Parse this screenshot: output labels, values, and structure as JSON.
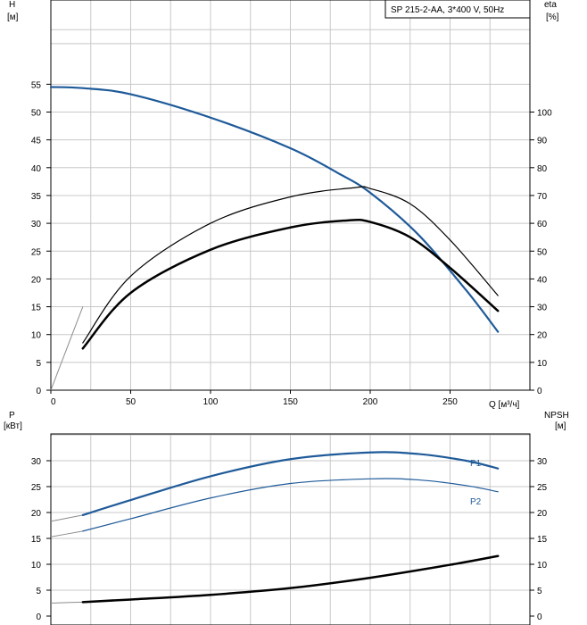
{
  "chart_data": [
    {
      "type": "line",
      "title": "SP 215-2-AA, 3*400 V, 50Hz",
      "xlabel": "Q [м³/ч]",
      "xlim": [
        0,
        300
      ],
      "x_ticks": [
        "0",
        "50",
        "100",
        "150",
        "200",
        "250"
      ],
      "y_left": {
        "label_top": "H",
        "label_bottom": "[м]",
        "ylim": [
          0,
          65
        ],
        "ticks": [
          "0",
          "5",
          "10",
          "15",
          "20",
          "25",
          "30",
          "35",
          "40",
          "45",
          "50",
          "55"
        ]
      },
      "y_right": {
        "label_top": "eta",
        "label_bottom": "[%]",
        "ylim": [
          0,
          130
        ],
        "ticks": [
          "0",
          "10",
          "20",
          "30",
          "40",
          "50",
          "60",
          "70",
          "80",
          "90",
          "100"
        ]
      },
      "grid": true,
      "series": [
        {
          "axis": "left",
          "color": "#1f5a99",
          "width": 2.2,
          "x": [
            0,
            20,
            50,
            100,
            150,
            180,
            200,
            230,
            260,
            280
          ],
          "y": [
            54.5,
            54.3,
            53.2,
            49,
            43.5,
            39,
            35.5,
            28,
            18,
            10.5
          ]
        },
        {
          "axis": "right",
          "color": "#000000",
          "width": 1.2,
          "x": [
            20,
            50,
            100,
            150,
            190,
            200,
            225,
            250,
            280
          ],
          "y": [
            17,
            41,
            60,
            69.5,
            72.8,
            72.5,
            67,
            54,
            34
          ]
        },
        {
          "axis": "right",
          "color": "#000000",
          "width": 2.5,
          "x": [
            20,
            50,
            100,
            150,
            185,
            200,
            225,
            250,
            280
          ],
          "y": [
            15,
            35,
            50.5,
            58.5,
            61,
            60.5,
            55,
            44,
            28.5
          ]
        }
      ],
      "extrapolations": [
        {
          "color": "#8c8c8c",
          "x": [
            0,
            20
          ],
          "y": [
            0,
            15
          ]
        }
      ]
    },
    {
      "type": "line",
      "xlim": [
        0,
        300
      ],
      "y_left": {
        "label_top": "P",
        "label_bottom": "[кВт]",
        "ylim": [
          0,
          35
        ],
        "ticks": [
          "0",
          "5",
          "10",
          "15",
          "20",
          "25",
          "30"
        ]
      },
      "y_right": {
        "label_top": "NPSH",
        "label_bottom": "[м]",
        "ylim": [
          0,
          35
        ],
        "ticks": [
          "0",
          "5",
          "10",
          "15",
          "20",
          "25",
          "30"
        ]
      },
      "grid": true,
      "series": [
        {
          "name": "P1",
          "axis": "left",
          "color": "#1f5a99",
          "width": 2.2,
          "x": [
            20,
            50,
            100,
            150,
            200,
            230,
            260,
            280
          ],
          "y": [
            19.5,
            22.4,
            27,
            30.3,
            31.6,
            31.3,
            30,
            28.5
          ]
        },
        {
          "name": "P2",
          "axis": "left",
          "color": "#1f5a99",
          "width": 1.2,
          "x": [
            20,
            50,
            100,
            150,
            200,
            230,
            260,
            280
          ],
          "y": [
            16.4,
            18.8,
            22.8,
            25.6,
            26.5,
            26.3,
            25.2,
            24
          ]
        },
        {
          "axis": "right",
          "color": "#000000",
          "width": 2.5,
          "x": [
            20,
            50,
            100,
            150,
            200,
            250,
            280
          ],
          "y": [
            2.7,
            3.2,
            4.1,
            5.4,
            7.4,
            9.9,
            11.6
          ]
        }
      ],
      "extrapolations": [
        {
          "color": "#8c8c8c",
          "x": [
            0,
            20
          ],
          "y": [
            18.3,
            19.5
          ]
        },
        {
          "color": "#8c8c8c",
          "x": [
            0,
            20
          ],
          "y": [
            15.3,
            16.4
          ]
        },
        {
          "color": "#8c8c8c",
          "x": [
            0,
            20
          ],
          "y": [
            2.5,
            2.7
          ]
        }
      ]
    }
  ]
}
